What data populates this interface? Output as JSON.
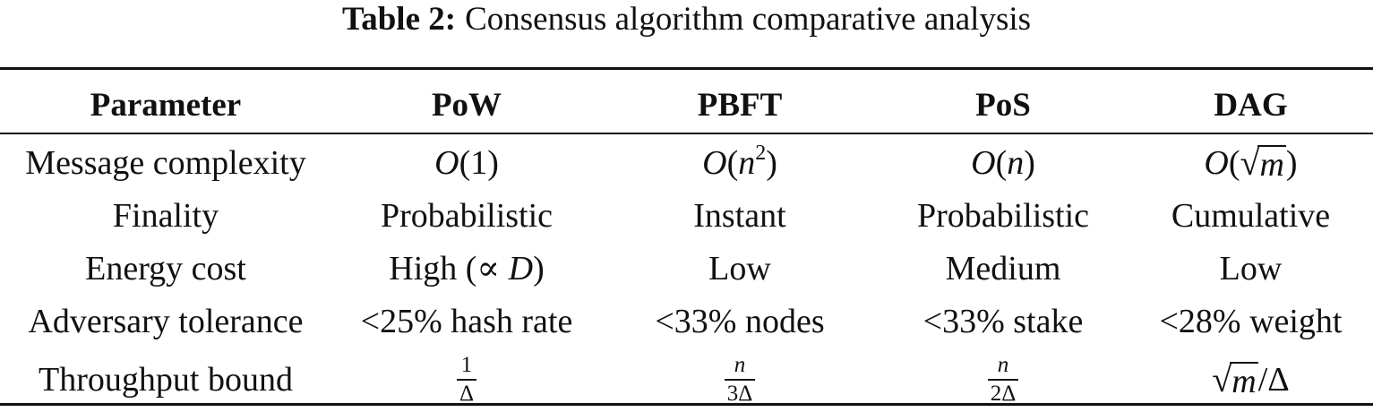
{
  "caption": {
    "label": "Table 2:",
    "text": "Consensus algorithm comparative analysis"
  },
  "table": {
    "headers": [
      "Parameter",
      "PoW",
      "PBFT",
      "PoS",
      "DAG"
    ],
    "rows": [
      {
        "parameter": "Message complexity",
        "pow": {
          "O": "O",
          "open": "(",
          "arg": "1",
          "close": ")"
        },
        "pbft": {
          "O": "O",
          "open": "(",
          "arg": "n",
          "exp": "2",
          "close": ")"
        },
        "pos": {
          "O": "O",
          "open": "(",
          "arg": "n",
          "close": ")"
        },
        "dag": {
          "O": "O",
          "open": "(",
          "radical": "√",
          "arg": "m",
          "close": ")"
        }
      },
      {
        "parameter": "Finality",
        "pow": "Probabilistic",
        "pbft": "Instant",
        "pos": "Probabilistic",
        "dag": "Cumulative"
      },
      {
        "parameter": "Energy cost",
        "pow": {
          "text": "High (",
          "symbol": "∝",
          "var": "D",
          "close": ")"
        },
        "pbft": "Low",
        "pos": "Medium",
        "dag": "Low"
      },
      {
        "parameter": "Adversary tolerance",
        "pow": "<25% hash rate",
        "pbft": "<33% nodes",
        "pos": "<33% stake",
        "dag": "<28% weight"
      },
      {
        "parameter": "Throughput bound",
        "pow": {
          "num": "1",
          "den": "Δ"
        },
        "pbft": {
          "num": "n",
          "den": "3Δ"
        },
        "pos": {
          "num": "n",
          "den": "2Δ"
        },
        "dag": {
          "radical": "√",
          "arg": "m",
          "slash": "/",
          "den": "Δ"
        }
      }
    ]
  }
}
